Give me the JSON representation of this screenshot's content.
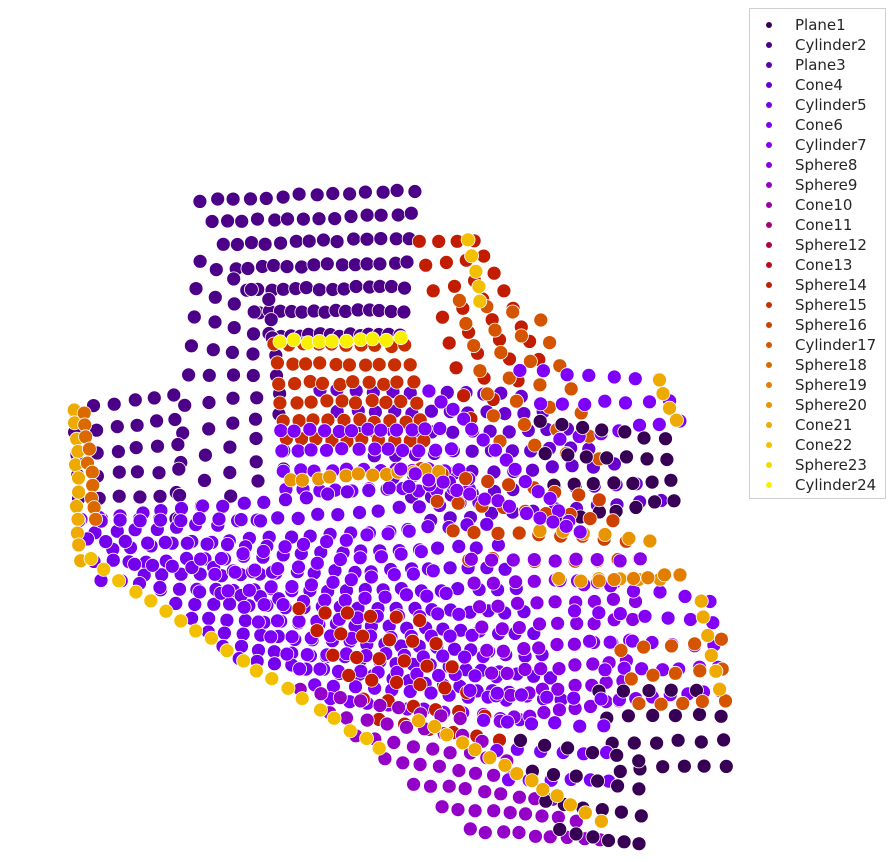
{
  "chart_data": {
    "type": "scatter",
    "title": "",
    "xlabel": "",
    "ylabel": "",
    "axes_visible": false,
    "legend_placement": "top-right",
    "series": [
      {
        "name": "Plane1",
        "color": "#380054"
      },
      {
        "name": "Cylinder2",
        "color": "#4c0088"
      },
      {
        "name": "Plane3",
        "color": "#5c00b0"
      },
      {
        "name": "Cone4",
        "color": "#6900d2"
      },
      {
        "name": "Cylinder5",
        "color": "#7500ec"
      },
      {
        "name": "Cone6",
        "color": "#7f00f8"
      },
      {
        "name": "Cylinder7",
        "color": "#8400f4"
      },
      {
        "name": "Sphere8",
        "color": "#8a00e6"
      },
      {
        "name": "Sphere9",
        "color": "#9300c8"
      },
      {
        "name": "Cone10",
        "color": "#9c00a2"
      },
      {
        "name": "Cone11",
        "color": "#a80076"
      },
      {
        "name": "Sphere12",
        "color": "#b40048"
      },
      {
        "name": "Cone13",
        "color": "#bc0a1c"
      },
      {
        "name": "Sphere14",
        "color": "#c21d00"
      },
      {
        "name": "Sphere15",
        "color": "#c82e00"
      },
      {
        "name": "Sphere16",
        "color": "#ce4000"
      },
      {
        "name": "Cylinder17",
        "color": "#d45400"
      },
      {
        "name": "Sphere18",
        "color": "#dc6800"
      },
      {
        "name": "Sphere19",
        "color": "#e27d00"
      },
      {
        "name": "Sphere20",
        "color": "#e89400"
      },
      {
        "name": "Cone21",
        "color": "#eeaa00"
      },
      {
        "name": "Cone22",
        "color": "#f2c000"
      },
      {
        "name": "Sphere23",
        "color": "#f6d800"
      },
      {
        "name": "Cylinder24",
        "color": "#f8f000"
      }
    ]
  }
}
